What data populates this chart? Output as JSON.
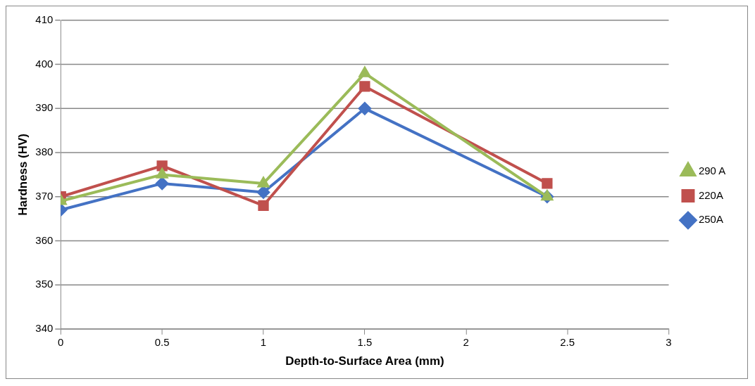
{
  "chart_data": {
    "type": "line",
    "xlabel": "Depth-to-Surface Area (mm)",
    "ylabel": "Hardness (HV)",
    "x": [
      0,
      0.5,
      1,
      1.5,
      2.4
    ],
    "series": [
      {
        "name": "250A",
        "color": "#4472c4",
        "marker": "diamond",
        "values": [
          367,
          373,
          371,
          390,
          370
        ]
      },
      {
        "name": "220A",
        "color": "#c0504d",
        "marker": "square",
        "values": [
          370,
          377,
          368,
          395,
          373
        ]
      },
      {
        "name": "290 A",
        "color": "#9bbb59",
        "marker": "triangle",
        "values": [
          369,
          375,
          373,
          398,
          370
        ]
      }
    ],
    "xlim": [
      0,
      3
    ],
    "xticks": [
      0,
      0.5,
      1,
      1.5,
      2,
      2.5,
      3
    ],
    "ylim": [
      340,
      410
    ],
    "yticks": [
      340,
      350,
      360,
      370,
      380,
      390,
      400,
      410
    ],
    "grid": "y",
    "legend": "right",
    "line_style": "solid"
  }
}
